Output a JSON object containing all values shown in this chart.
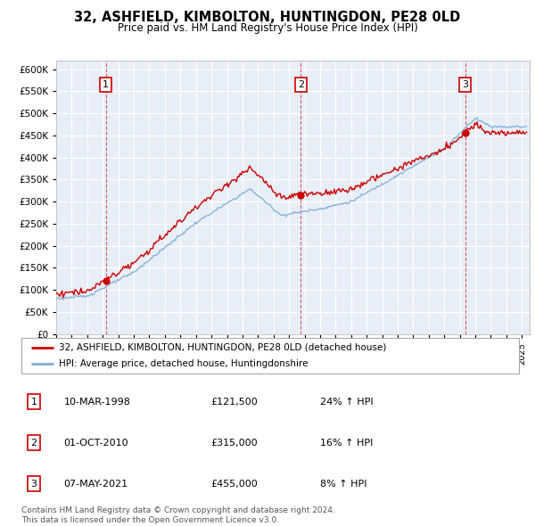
{
  "title": "32, ASHFIELD, KIMBOLTON, HUNTINGDON, PE28 0LD",
  "subtitle": "Price paid vs. HM Land Registry's House Price Index (HPI)",
  "bg_color": "#ffffff",
  "chart_bg_color": "#e8eef7",
  "red_color": "#cc0000",
  "blue_color": "#7dadd4",
  "sale_dates": [
    1998.19,
    2010.75,
    2021.35
  ],
  "sale_prices": [
    121500,
    315000,
    455000
  ],
  "sale_labels": [
    "1",
    "2",
    "3"
  ],
  "legend_line1": "32, ASHFIELD, KIMBOLTON, HUNTINGDON, PE28 0LD (detached house)",
  "legend_line2": "HPI: Average price, detached house, Huntingdonshire",
  "table_data": [
    [
      "1",
      "10-MAR-1998",
      "£121,500",
      "24% ↑ HPI"
    ],
    [
      "2",
      "01-OCT-2010",
      "£315,000",
      "16% ↑ HPI"
    ],
    [
      "3",
      "07-MAY-2021",
      "£455,000",
      "8% ↑ HPI"
    ]
  ],
  "footnote1": "Contains HM Land Registry data © Crown copyright and database right 2024.",
  "footnote2": "This data is licensed under the Open Government Licence v3.0.",
  "ylim": [
    0,
    620000
  ],
  "yticks": [
    0,
    50000,
    100000,
    150000,
    200000,
    250000,
    300000,
    350000,
    400000,
    450000,
    500000,
    550000,
    600000
  ],
  "xlim_start": 1995,
  "xlim_end": 2025.5
}
